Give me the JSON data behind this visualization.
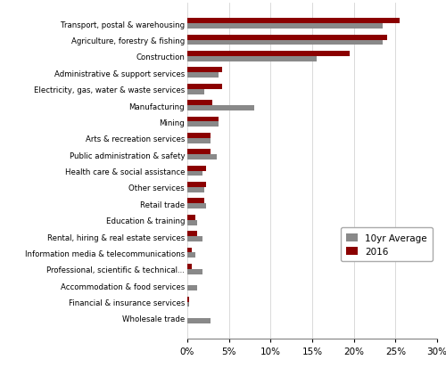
{
  "categories": [
    "Transport, postal & warehousing",
    "Agriculture, forestry & fishing",
    "Construction",
    "Administrative & support services",
    "Electricity, gas, water & waste services",
    "Manufacturing",
    "Mining",
    "Arts & recreation services",
    "Public administration & safety",
    "Health care & social assistance",
    "Other services",
    "Retail trade",
    "Education & training",
    "Rental, hiring & real estate services",
    "Information media & telecommunications",
    "Professional, scientific & technical...",
    "Accommodation & food services",
    "Financial & insurance services",
    "Wholesale trade"
  ],
  "avg_10yr": [
    23.5,
    23.5,
    15.5,
    3.8,
    2.0,
    8.0,
    3.8,
    2.8,
    3.5,
    1.8,
    2.0,
    2.2,
    1.2,
    1.8,
    1.0,
    1.8,
    1.2,
    0.2,
    2.8
  ],
  "val_2016": [
    25.5,
    24.0,
    19.5,
    4.2,
    4.2,
    3.0,
    3.8,
    2.8,
    2.8,
    2.2,
    2.2,
    2.0,
    1.0,
    1.2,
    0.5,
    0.5,
    0.0,
    0.2,
    0.0
  ],
  "color_avg": "#898989",
  "color_2016": "#8B0000",
  "legend_avg": "10yr Average",
  "legend_2016": "2016",
  "xlim": [
    0,
    30
  ],
  "xtick_vals": [
    0,
    5,
    10,
    15,
    20,
    25,
    30
  ],
  "xtick_labels": [
    "0%",
    "5%",
    "10%",
    "15%",
    "20%",
    "25%",
    "30%"
  ],
  "bar_height": 0.32,
  "figsize": [
    5.0,
    4.14
  ],
  "dpi": 100
}
